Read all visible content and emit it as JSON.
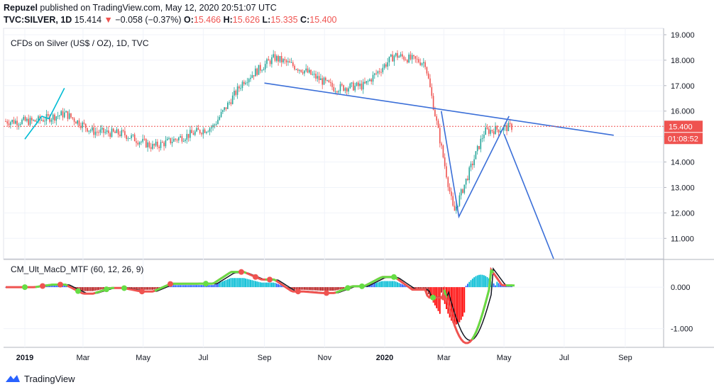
{
  "header": {
    "author": "Repuzel",
    "published": "published on TradingView.com, May 12, 2020 20:51:07 UTC",
    "symbol": "TVC:SILVER, 1D",
    "last": "15.414",
    "change_arrow": "▼",
    "change": "−0.058 (−0.37%)",
    "o_label": "O:",
    "o_value": "15.466",
    "h_label": "H:",
    "h_value": "15.626",
    "l_label": "L:",
    "l_value": "15.335",
    "c_label": "C:",
    "c_value": "15.400"
  },
  "chart_data": [
    {
      "type": "candlestick",
      "title": "CFDs on Silver (US$ / OZ), 1D, TVC",
      "ylim": [
        10.2,
        19.25
      ],
      "y_ticks": [
        "19.000",
        "18.000",
        "17.000",
        "16.000",
        "15.000",
        "14.000",
        "13.000",
        "12.000",
        "11.000"
      ],
      "x_ticks": [
        "2019",
        "Mar",
        "May",
        "Jul",
        "Sep",
        "Nov",
        "2020",
        "Mar",
        "May",
        "Jul",
        "Sep"
      ],
      "current_price_label": "15.400",
      "countdown_label": "01:08:52",
      "series": [
        {
          "x": [
            "2019-01",
            "2019-02",
            "2019-03",
            "2019-04",
            "2019-05",
            "2019-06",
            "2019-07",
            "2019-08",
            "2019-09",
            "2019-10",
            "2019-11",
            "2019-12",
            "2020-01",
            "2020-02",
            "2020-03",
            "2020-04",
            "2020-05"
          ],
          "close": [
            15.6,
            15.9,
            15.2,
            15.1,
            14.6,
            15.0,
            15.4,
            17.2,
            18.1,
            17.6,
            16.9,
            17.0,
            18.2,
            17.9,
            12.0,
            15.2,
            15.4
          ]
        }
      ],
      "trendlines": [
        {
          "color": "#3b6fd8",
          "points": [
            [
              "2019-09-01",
              17.1
            ],
            [
              "2020-08-20",
              15.05
            ]
          ]
        },
        {
          "color": "#3b6fd8",
          "points": [
            [
              "2020-02-27",
              16.0
            ],
            [
              "2020-03-16",
              11.85
            ],
            [
              "2020-05-06",
              15.8
            ]
          ]
        },
        {
          "color": "#3b6fd8",
          "points": [
            [
              "2020-05-01",
              15.1
            ],
            [
              "2020-06-20",
              10.2
            ]
          ]
        },
        {
          "color": "#00bcd4",
          "points": [
            [
              "2019-01-01",
              14.9
            ],
            [
              "2019-01-18",
              15.8
            ],
            [
              "2019-01-25",
              15.7
            ],
            [
              "2019-02-10",
              16.9
            ]
          ]
        }
      ]
    },
    {
      "type": "histogram+lines",
      "title": "CM_Ult_MacD_MTF (60, 12, 26, 9)",
      "ylim": [
        -1.45,
        0.65
      ],
      "y_ticks": [
        "0.000",
        "-1.000"
      ]
    }
  ],
  "footer": {
    "brand": "TradingView"
  },
  "colors": {
    "up": "#26a69a",
    "down": "#ef5350",
    "trend": "#3b6fd8",
    "price_line": "#ef5350"
  }
}
